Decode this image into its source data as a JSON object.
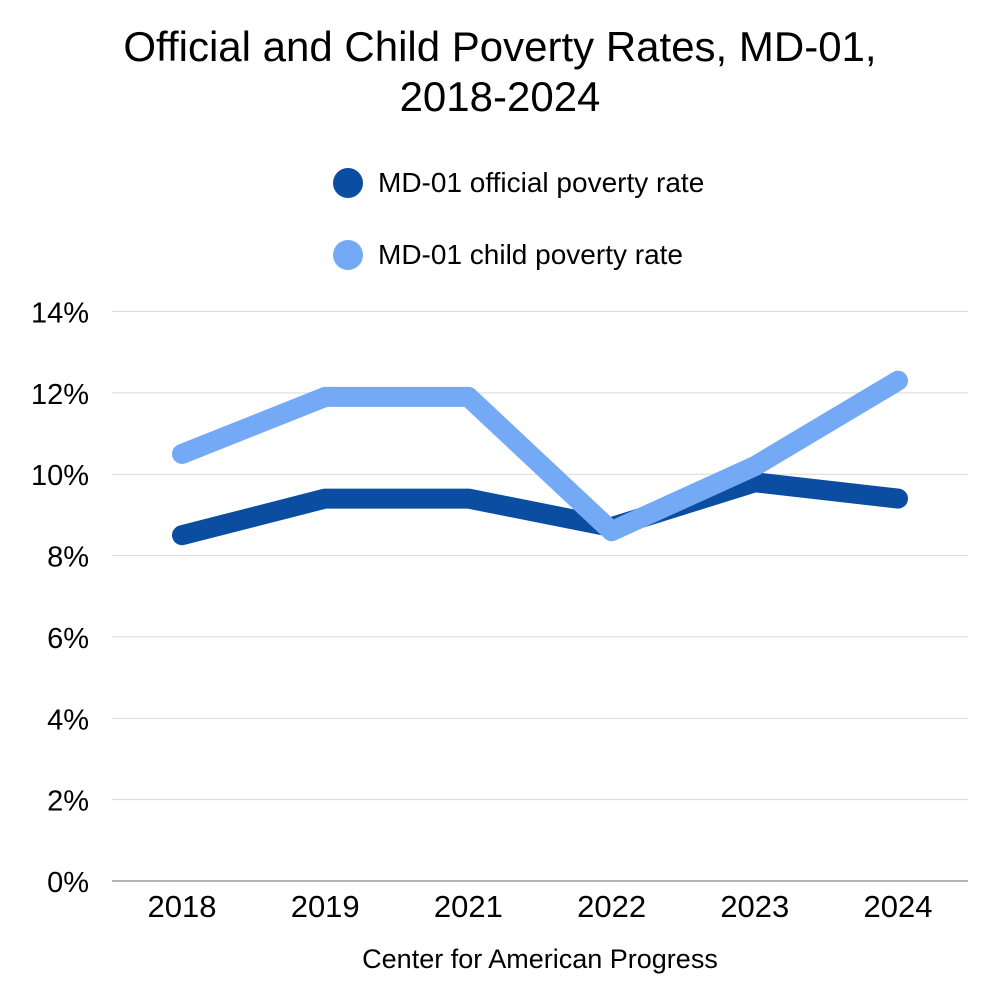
{
  "title": "Official and Child Poverty Rates, MD-01, 2018-2024",
  "legend": {
    "items": [
      {
        "id": "official",
        "label": "MD-01 official poverty rate",
        "color": "#0a4da1"
      },
      {
        "id": "child",
        "label": "MD-01 child poverty rate",
        "color": "#74a9f6"
      }
    ]
  },
  "footer": "Center for American Progress",
  "colors": {
    "background": "#ffffff",
    "text": "#000000",
    "gridline": "#d9d9d9",
    "axis_line": "#b3b3b3",
    "official_series": "#0a4da1",
    "child_series": "#74a9f6"
  },
  "chart_data": {
    "type": "line",
    "title": "Official and Child Poverty Rates, MD-01, 2018-2024",
    "categories": [
      "2018",
      "2019",
      "2021",
      "2022",
      "2023",
      "2024"
    ],
    "series": [
      {
        "id": "official",
        "name": "MD-01 official poverty rate",
        "color": "#0a4da1",
        "values": [
          8.5,
          9.4,
          9.4,
          8.7,
          9.8,
          9.4
        ]
      },
      {
        "id": "child",
        "name": "MD-01 child poverty rate",
        "color": "#74a9f6",
        "values": [
          10.5,
          11.9,
          11.9,
          8.6,
          10.2,
          12.3
        ]
      }
    ],
    "xlabel": "",
    "ylabel": "",
    "ylim": [
      0,
      14
    ],
    "ytick_step": 2,
    "ytick_suffix": "%",
    "ytick_labels": [
      "0%",
      "2%",
      "4%",
      "6%",
      "8%",
      "10%",
      "12%",
      "14%"
    ],
    "grid": true,
    "legend_position": "top",
    "line_width": 20
  }
}
